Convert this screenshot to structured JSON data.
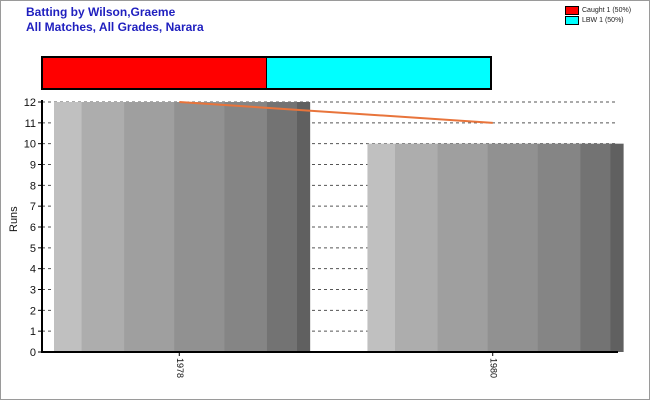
{
  "title_line1": "Batting by Wilson,Graeme",
  "title_line2": "All Matches, All Grades, Narara",
  "legend": [
    {
      "label": "Caught 1 (50%)",
      "color": "#ff0000"
    },
    {
      "label": "LBW 1 (50%)",
      "color": "#00ffff"
    }
  ],
  "chart_data": [
    {
      "type": "bar",
      "title": "Batting by Wilson,Graeme",
      "subtitle": "All Matches, All Grades, Narara",
      "categories": [
        "1978",
        "1980"
      ],
      "values": [
        12,
        10
      ],
      "trend": [
        12,
        11
      ],
      "ylabel": "Runs",
      "xlabel": "",
      "ylim": [
        0,
        12
      ],
      "yticks": [
        0,
        1,
        2,
        3,
        4,
        5,
        6,
        7,
        8,
        9,
        10,
        11,
        12
      ],
      "grid": true,
      "legend_position": "top-right",
      "colors": {
        "trend": "#e8743b",
        "bar_light": "#c0c0c0",
        "bar_dark": "#606060"
      }
    },
    {
      "type": "bar",
      "stacked": true,
      "orientation": "horizontal",
      "series": [
        {
          "name": "Caught",
          "values": [
            1
          ]
        },
        {
          "name": "LBW",
          "values": [
            1
          ]
        }
      ],
      "colors": [
        "#ff0000",
        "#00ffff"
      ]
    }
  ]
}
